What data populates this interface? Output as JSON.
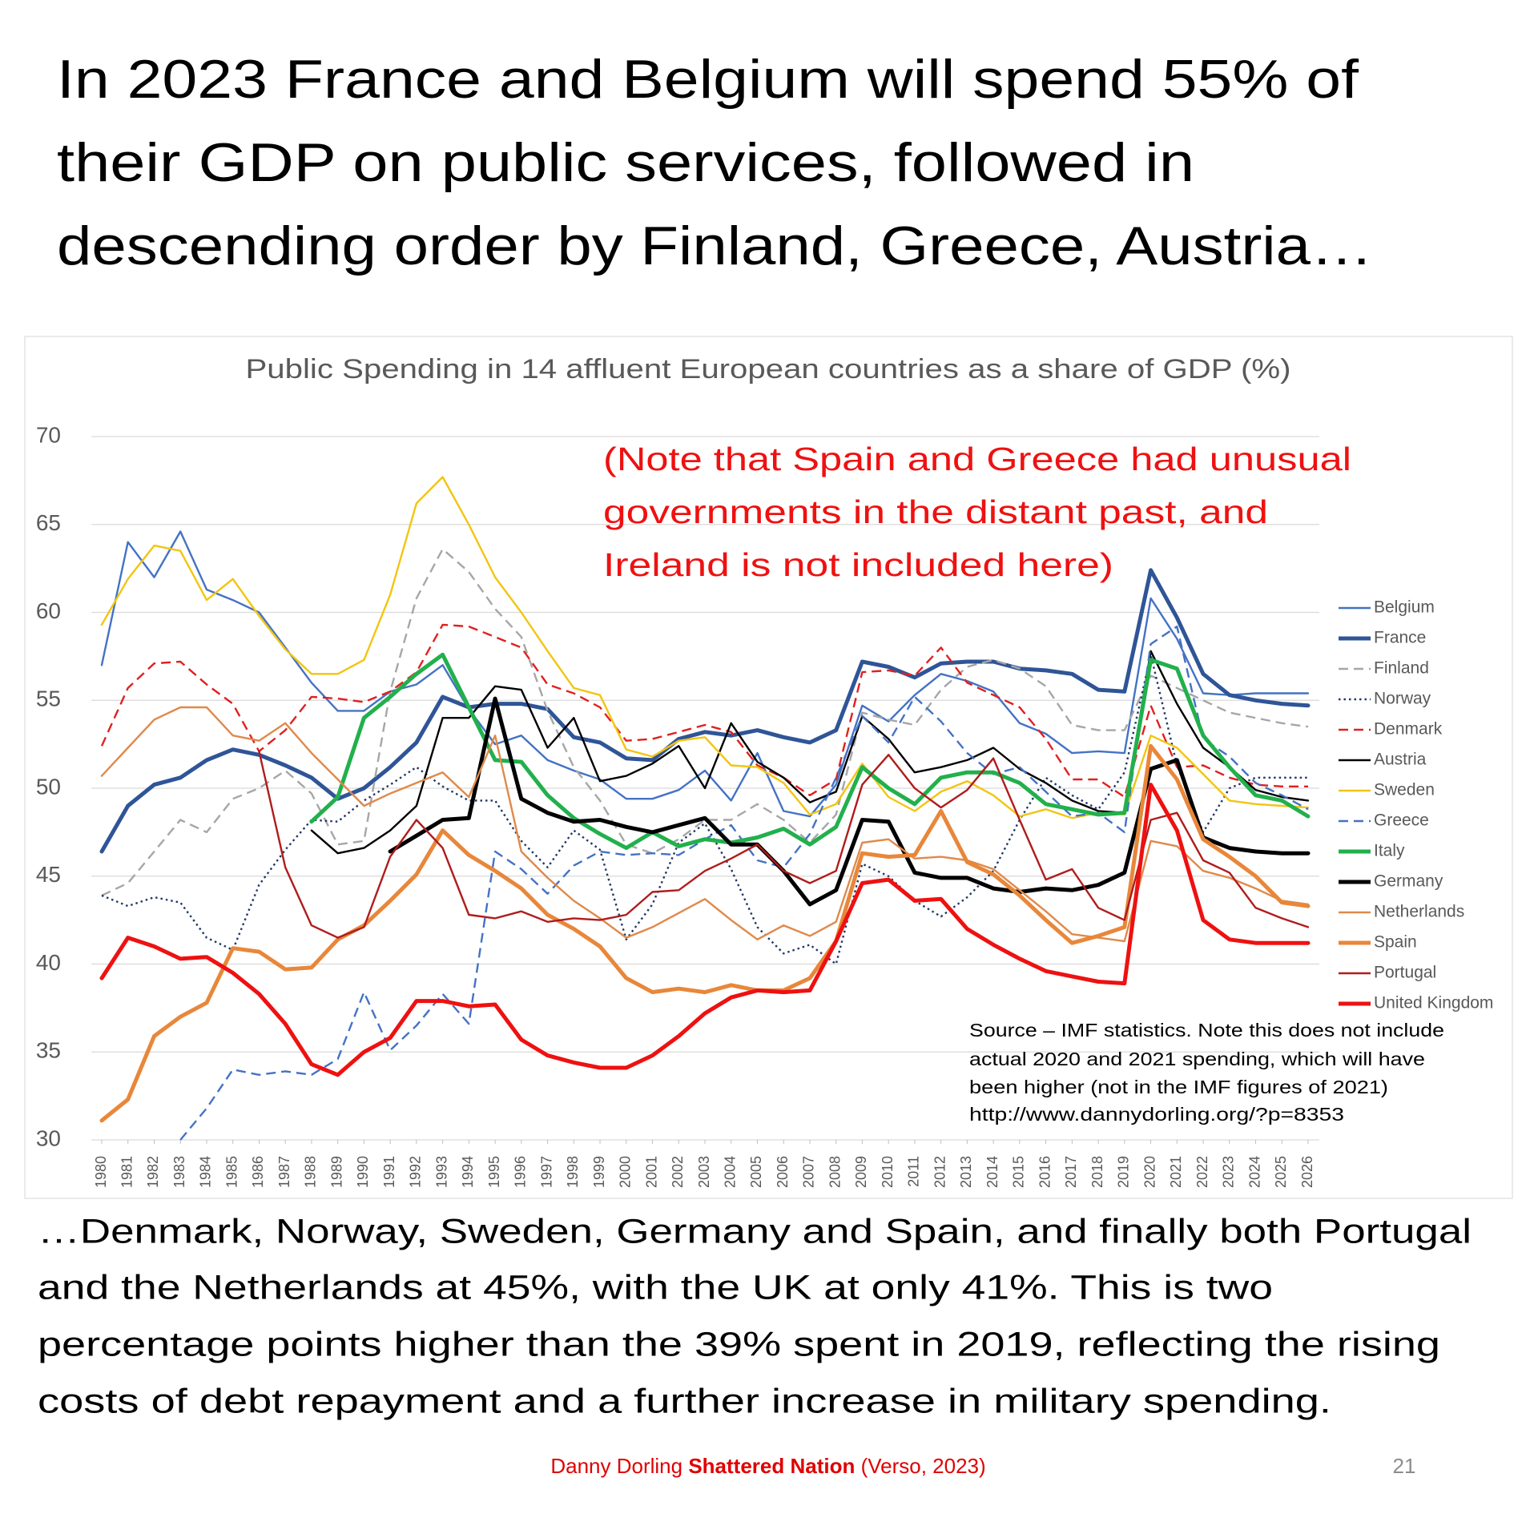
{
  "header": {
    "lines": [
      "In 2023 France and Belgium will spend 55% of",
      "their GDP on public services, followed in",
      "descending order by Finland, Greece, Austria…"
    ]
  },
  "body": {
    "lines": [
      "…Denmark, Norway, Sweden, Germany and Spain, and finally both Portugal",
      "and the Netherlands at 45%, with the UK at only 41%. This is two",
      "percentage points higher than the 39% spent in 2019, reflecting the rising",
      "costs of debt repayment and a further increase in military spending."
    ]
  },
  "footer": {
    "author": "Danny Dorling",
    "book": "Shattered Nation",
    "publisher": "(Verso, 2023)",
    "page_number": 21
  },
  "chart_data": {
    "type": "line",
    "title": "Public Spending in 14 affluent European countries as a share of GDP (%)",
    "note": [
      "(Note that Spain and Greece had unusual",
      "governments in the distant past, and",
      "Ireland is not included here)"
    ],
    "source": [
      "Source – IMF statistics. Note this does not include",
      "actual 2020 and 2021 spending, which will have",
      "been higher (not in the IMF figures of 2021)",
      "http://www.dannydorling.org/?p=8353"
    ],
    "x": [
      1980,
      1981,
      1982,
      1983,
      1984,
      1985,
      1986,
      1987,
      1988,
      1989,
      1990,
      1991,
      1992,
      1993,
      1994,
      1995,
      1996,
      1997,
      1998,
      1999,
      2000,
      2001,
      2002,
      2003,
      2004,
      2005,
      2006,
      2007,
      2008,
      2009,
      2010,
      2011,
      2012,
      2013,
      2014,
      2015,
      2016,
      2017,
      2018,
      2019,
      2020,
      2021,
      2022,
      2023,
      2024,
      2025,
      2026
    ],
    "xlim": [
      1980,
      2026
    ],
    "ylim": [
      30,
      70
    ],
    "yticks": [
      30,
      35,
      40,
      45,
      50,
      55,
      60,
      65,
      70
    ],
    "grid": true,
    "legend": "right",
    "series": [
      {
        "name": "Belgium",
        "color": "#4472c4",
        "line_width": "thin",
        "line_style": "solid",
        "values": [
          57,
          64,
          62,
          64.6,
          61.3,
          60.7,
          60,
          58,
          56,
          54.4,
          54.4,
          55.5,
          55.9,
          57,
          54.5,
          52.5,
          53,
          51.6,
          51,
          50.5,
          49.4,
          49.4,
          49.9,
          51,
          49.3,
          52,
          48.7,
          48.4,
          50.2,
          54.7,
          53.8,
          55.3,
          56.5,
          56.1,
          55.5,
          53.7,
          53.1,
          52,
          52.1,
          52,
          60.8,
          58.5,
          55.4,
          55.3,
          55.4,
          55.4,
          55.4
        ]
      },
      {
        "name": "France",
        "color": "#2f5597",
        "line_width": "thick",
        "line_style": "solid",
        "values": [
          46.4,
          49,
          50.2,
          50.6,
          51.6,
          52.2,
          51.9,
          51.3,
          50.6,
          49.4,
          50,
          51.2,
          52.6,
          55.2,
          54.6,
          54.8,
          54.8,
          54.5,
          52.9,
          52.6,
          51.7,
          51.6,
          52.8,
          53.2,
          53,
          53.3,
          52.9,
          52.6,
          53.3,
          57.2,
          56.9,
          56.3,
          57.1,
          57.2,
          57.2,
          56.8,
          56.7,
          56.5,
          55.6,
          55.5,
          62.4,
          59.7,
          56.5,
          55.3,
          55,
          54.8,
          54.7
        ]
      },
      {
        "name": "Finland",
        "color": "#a6a6a6",
        "line_width": "thin",
        "line_style": "dashed",
        "values": [
          43.9,
          44.6,
          46.4,
          48.2,
          47.5,
          49.4,
          50,
          51,
          49.7,
          46.8,
          47,
          55.5,
          60.8,
          63.6,
          62.3,
          60.2,
          58.6,
          54.4,
          51.2,
          49.3,
          46.8,
          46.3,
          47.1,
          48.2,
          48.2,
          49.1,
          48.2,
          46.9,
          48.5,
          54.3,
          53.9,
          53.6,
          55.6,
          56.9,
          57.3,
          56.8,
          55.8,
          53.6,
          53.3,
          53.3,
          56.4,
          55.7,
          55,
          54.3,
          54,
          53.7,
          53.5
        ]
      },
      {
        "name": "Norway",
        "color": "#203864",
        "line_width": "thin",
        "line_style": "dotted",
        "values": [
          43.9,
          43.3,
          43.8,
          43.5,
          41.5,
          40.8,
          44.5,
          46.5,
          48.2,
          48.1,
          49.3,
          50.2,
          51.2,
          50.1,
          49.3,
          49.3,
          47,
          45.5,
          47.6,
          46.5,
          41.4,
          43.4,
          46.9,
          48,
          45.4,
          42.1,
          40.6,
          41.1,
          40,
          45.7,
          45,
          43.6,
          42.7,
          43.8,
          45.3,
          48.2,
          50.6,
          49.6,
          48.8,
          50.9,
          57.6,
          51.3,
          47.5,
          50,
          50.6,
          50.6,
          50.6
        ]
      },
      {
        "name": "Denmark",
        "color": "#e02020",
        "line_width": "thin",
        "line_style": "dashed",
        "values": [
          52.4,
          55.7,
          57.1,
          57.2,
          55.9,
          54.8,
          52.1,
          53.3,
          55.2,
          55.1,
          54.9,
          55.5,
          56.6,
          59.3,
          59.2,
          58.6,
          58,
          55.9,
          55.4,
          54.6,
          52.7,
          52.8,
          53.2,
          53.6,
          53.2,
          51.3,
          50.6,
          49.6,
          50.5,
          56.6,
          56.7,
          56.4,
          58,
          56,
          55.3,
          54.6,
          52.8,
          50.5,
          50.5,
          49.5,
          54.7,
          51.2,
          51.3,
          50.6,
          50.2,
          50.1,
          50.1
        ]
      },
      {
        "name": "Austria",
        "color": "#000000",
        "line_width": "thin",
        "line_style": "solid",
        "values": [
          null,
          null,
          null,
          null,
          null,
          null,
          null,
          null,
          47.6,
          46.3,
          46.6,
          47.6,
          49,
          54,
          54,
          55.8,
          55.6,
          52.3,
          54,
          50.4,
          50.7,
          51.4,
          52.4,
          50,
          53.7,
          51.5,
          50.6,
          49.2,
          49.8,
          54.1,
          52.8,
          50.9,
          51.2,
          51.6,
          52.3,
          51.1,
          50.3,
          49.3,
          48.7,
          48.6,
          57.8,
          54.8,
          52.3,
          51.2,
          49.9,
          49.5,
          49.3
        ]
      },
      {
        "name": "Sweden",
        "color": "#f2c511",
        "line_width": "thin",
        "line_style": "solid",
        "values": [
          59.3,
          61.9,
          63.8,
          63.5,
          60.7,
          61.9,
          59.8,
          57.9,
          56.5,
          56.5,
          57.3,
          61,
          66.2,
          67.7,
          65,
          62,
          60,
          57.8,
          55.7,
          55.3,
          52.2,
          51.8,
          52.7,
          52.9,
          51.3,
          51.2,
          50.3,
          48.5,
          49.1,
          51.4,
          49.5,
          48.7,
          49.8,
          50.4,
          49.6,
          48.4,
          48.8,
          48.3,
          48.6,
          48.5,
          53,
          52.3,
          50.8,
          49.3,
          49.1,
          49,
          48.9
        ]
      },
      {
        "name": "Greece",
        "color": "#4472c4",
        "line_width": "thin",
        "line_style": "dashed",
        "values": [
          null,
          null,
          null,
          30,
          31.8,
          34,
          33.7,
          33.9,
          33.7,
          34.6,
          38.4,
          35.1,
          36.5,
          38.3,
          36.6,
          46.4,
          45.4,
          44,
          45.6,
          46.4,
          46.2,
          46.3,
          46.2,
          47.1,
          47.9,
          45.9,
          45.5,
          47.4,
          50.6,
          54.1,
          52.6,
          55.2,
          53.8,
          52,
          50.8,
          51.2,
          49.8,
          48.4,
          48.6,
          47.5,
          58.2,
          59.2,
          52.8,
          51.8,
          50.3,
          49.6,
          48.8
        ]
      },
      {
        "name": "Italy",
        "color": "#22b04c",
        "line_width": "thick",
        "line_style": "solid",
        "values": [
          null,
          null,
          null,
          null,
          null,
          null,
          null,
          null,
          48.1,
          49.5,
          54,
          55.2,
          56.5,
          57.6,
          54.6,
          51.6,
          51.5,
          49.6,
          48.3,
          47.4,
          46.6,
          47.5,
          46.7,
          47.1,
          46.9,
          47.2,
          47.7,
          46.8,
          47.8,
          51.2,
          50,
          49.1,
          50.6,
          50.9,
          50.9,
          50.3,
          49.1,
          48.8,
          48.5,
          48.6,
          57.3,
          56.8,
          53,
          51.2,
          49.6,
          49.3,
          48.4
        ]
      },
      {
        "name": "Germany",
        "color": "#000000",
        "line_width": "thick",
        "line_style": "solid",
        "values": [
          null,
          null,
          null,
          null,
          null,
          null,
          null,
          null,
          null,
          null,
          null,
          46.4,
          47.3,
          48.2,
          48.3,
          55.1,
          49.4,
          48.6,
          48.1,
          48.2,
          47.8,
          47.5,
          47.9,
          48.3,
          46.8,
          46.8,
          45.3,
          43.4,
          44.2,
          48.2,
          48.1,
          45.2,
          44.9,
          44.9,
          44.3,
          44.1,
          44.3,
          44.2,
          44.5,
          45.2,
          51.1,
          51.6,
          47.2,
          46.6,
          46.4,
          46.3,
          46.3
        ]
      },
      {
        "name": "Netherlands",
        "color": "#e0894a",
        "line_width": "thin",
        "line_style": "solid",
        "values": [
          50.7,
          52.3,
          53.9,
          54.6,
          54.6,
          53,
          52.7,
          53.7,
          52,
          50.5,
          49,
          49.7,
          50.3,
          50.9,
          49.5,
          53,
          46.4,
          44.9,
          43.6,
          42.6,
          41.5,
          42.1,
          42.9,
          43.7,
          42.5,
          41.4,
          42.2,
          41.6,
          42.4,
          46.9,
          47.1,
          46,
          46.1,
          45.9,
          45.4,
          44.2,
          43,
          41.7,
          41.5,
          41.3,
          47,
          46.7,
          45.3,
          44.9,
          44.3,
          43.6,
          43.4
        ]
      },
      {
        "name": "Spain",
        "color": "#e8873a",
        "line_width": "thick",
        "line_style": "solid",
        "values": [
          31.1,
          32.3,
          35.9,
          37,
          37.8,
          40.9,
          40.7,
          39.7,
          39.8,
          41.4,
          42.2,
          43.6,
          45.1,
          47.6,
          46.2,
          45.3,
          44.3,
          42.8,
          42,
          41,
          39.2,
          38.4,
          38.6,
          38.4,
          38.8,
          38.5,
          38.5,
          39.2,
          41.3,
          46.3,
          46.1,
          46.2,
          48.7,
          45.8,
          45.1,
          43.9,
          42.5,
          41.2,
          41.6,
          42.1,
          52.4,
          50.5,
          47.1,
          46.1,
          45,
          43.5,
          43.3
        ]
      },
      {
        "name": "Portugal",
        "color": "#b01c1c",
        "line_width": "thin",
        "line_style": "solid",
        "values": [
          null,
          null,
          null,
          null,
          null,
          null,
          52.1,
          45.5,
          42.2,
          41.5,
          42.1,
          46.1,
          48.2,
          46.6,
          42.8,
          42.6,
          43,
          42.4,
          42.6,
          42.5,
          42.8,
          44.1,
          44.2,
          45.3,
          46,
          46.8,
          45.3,
          44.6,
          45.3,
          50.2,
          51.9,
          50,
          48.9,
          49.9,
          51.7,
          48.2,
          44.8,
          45.4,
          43.2,
          42.5,
          48.2,
          48.6,
          45.9,
          45.2,
          43.2,
          42.6,
          42.1
        ]
      },
      {
        "name": "United Kingdom",
        "color": "#ee1111",
        "line_width": "thick",
        "line_style": "solid",
        "values": [
          39.2,
          41.5,
          41,
          40.3,
          40.4,
          39.5,
          38.3,
          36.6,
          34.3,
          33.7,
          35,
          35.8,
          37.9,
          37.9,
          37.6,
          37.7,
          35.7,
          34.8,
          34.4,
          34.1,
          34.1,
          34.8,
          35.9,
          37.2,
          38.1,
          38.5,
          38.4,
          38.5,
          41.3,
          44.6,
          44.8,
          43.6,
          43.7,
          42,
          41.1,
          40.3,
          39.6,
          39.3,
          39,
          38.9,
          50.2,
          47.6,
          42.5,
          41.4,
          41.2,
          41.2,
          41.2
        ]
      }
    ]
  }
}
